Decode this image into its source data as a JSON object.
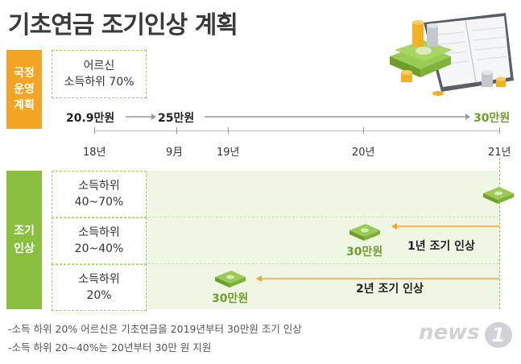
{
  "title": "기초연금 조기인상 계획",
  "national_plan": {
    "label_line1": "국정",
    "label_line2": "운영",
    "label_line3": "계획",
    "target_line1": "어르신",
    "target_line2": "소득하위 70%",
    "amount_start": "20.9만원",
    "amount_mid": "25만원",
    "amount_end": "30만원"
  },
  "timeline": {
    "years": [
      "18년",
      "9月",
      "19년",
      "20년",
      "21년"
    ]
  },
  "early_raise": {
    "label_line1": "조기",
    "label_line2": "인상",
    "rows": [
      {
        "line1": "소득하위",
        "line2": "40~70%"
      },
      {
        "line1": "소득하위",
        "line2": "20~40%"
      },
      {
        "line1": "소득하위",
        "line2": "20%"
      }
    ],
    "amount_row2": "30만원",
    "amount_row3": "30만원",
    "arrow_row2": "1년 조기 인상",
    "arrow_row3": "2년 조기 인상"
  },
  "notes": [
    "-소득 하위 20% 어르신은 기초연금을 2019년부터 30만원 조기 인상",
    "-소득 하위 20~40%는 20년부터 30만 원 지원"
  ],
  "logo_text": "news",
  "logo_number": "1",
  "colors": {
    "orange": "#f5a524",
    "green": "#8bbf3f",
    "light_green": "#f0f6e4",
    "arrow_orange": "#f5a524",
    "timeline_gray": "#999999"
  },
  "icons": [
    "money-stack-icon",
    "coin-stack-icon",
    "notebook-icon"
  ]
}
